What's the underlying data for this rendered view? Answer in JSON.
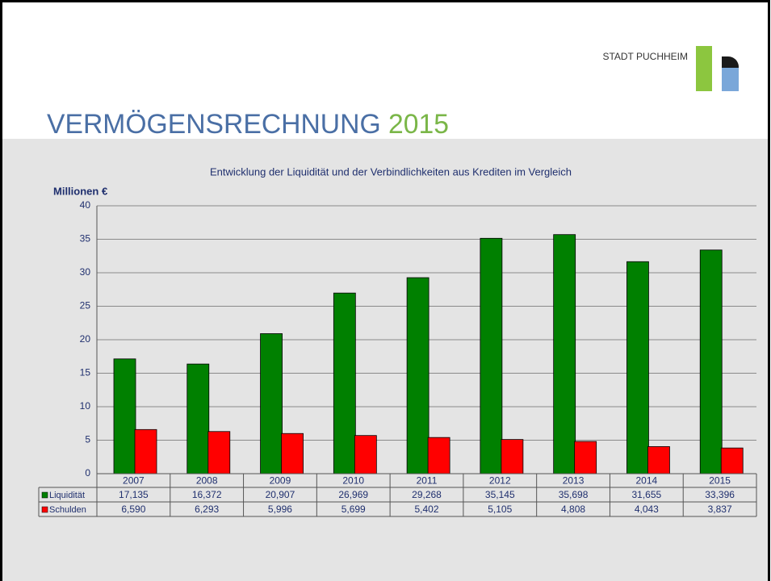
{
  "header": {
    "organization": "STADT PUCHHEIM",
    "title": "VERMÖGENSRECHNUNG",
    "title_year": "2015"
  },
  "chart_data": {
    "type": "bar",
    "title": "Entwicklung der Liquidität und der Verbindlichkeiten aus Krediten im Vergleich",
    "y_label": "Millionen €",
    "categories": [
      "2007",
      "2008",
      "2009",
      "2010",
      "2011",
      "2012",
      "2013",
      "2014",
      "2015"
    ],
    "series": [
      {
        "name": "Liquidität",
        "color": "#008000",
        "values": [
          17.135,
          16.372,
          20.907,
          26.969,
          29.268,
          35.145,
          35.698,
          31.655,
          33.396
        ],
        "value_labels": [
          "17,135",
          "16,372",
          "20,907",
          "26,969",
          "29,268",
          "35,145",
          "35,698",
          "31,655",
          "33,396"
        ]
      },
      {
        "name": "Schulden",
        "color": "#ff0000",
        "values": [
          6.59,
          6.293,
          5.996,
          5.699,
          5.402,
          5.105,
          4.808,
          4.043,
          3.837
        ],
        "value_labels": [
          "6,590",
          "6,293",
          "5,996",
          "5,699",
          "5,402",
          "5,105",
          "4,808",
          "4,043",
          "3,837"
        ]
      }
    ],
    "ylim": [
      0,
      40
    ],
    "yticks": [
      0,
      5,
      10,
      15,
      20,
      25,
      30,
      35,
      40
    ],
    "grid": true
  }
}
